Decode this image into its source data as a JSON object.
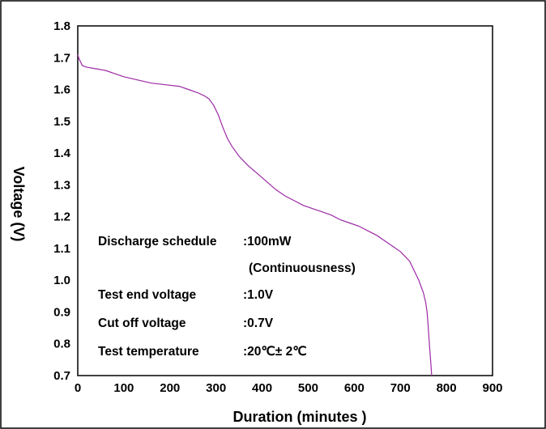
{
  "chart_data": {
    "type": "line",
    "xlabel": "Duration  (minutes )",
    "ylabel": "Voltage (V)",
    "xlim": [
      0,
      900
    ],
    "ylim": [
      0.7,
      1.8
    ],
    "x_ticks": [
      "0",
      "100",
      "200",
      "300",
      "400",
      "500",
      "600",
      "700",
      "800",
      "900"
    ],
    "y_ticks": [
      "0.7",
      "0.8",
      "0.9",
      "1.0",
      "1.1",
      "1.2",
      "1.3",
      "1.4",
      "1.5",
      "1.6",
      "1.7",
      "1.8"
    ],
    "grid": false,
    "line_color": "#9c2aa6",
    "series": [
      {
        "x": [
          0,
          2,
          5,
          10,
          20,
          40,
          60,
          80,
          100,
          130,
          160,
          190,
          220,
          240,
          260,
          275,
          285,
          295,
          305,
          315,
          325,
          335,
          350,
          370,
          390,
          410,
          430,
          450,
          470,
          490,
          510,
          530,
          550,
          570,
          590,
          610,
          630,
          650,
          670,
          690,
          700,
          710,
          720,
          730,
          740,
          745,
          750,
          755,
          758,
          760,
          762,
          764,
          766,
          768
        ],
        "y": [
          1.71,
          1.7,
          1.69,
          1.675,
          1.67,
          1.665,
          1.66,
          1.65,
          1.64,
          1.63,
          1.62,
          1.615,
          1.61,
          1.6,
          1.59,
          1.58,
          1.57,
          1.55,
          1.52,
          1.48,
          1.445,
          1.42,
          1.39,
          1.36,
          1.335,
          1.31,
          1.285,
          1.265,
          1.25,
          1.235,
          1.225,
          1.215,
          1.205,
          1.19,
          1.18,
          1.17,
          1.155,
          1.14,
          1.12,
          1.1,
          1.09,
          1.075,
          1.06,
          1.03,
          1.0,
          0.98,
          0.96,
          0.93,
          0.9,
          0.86,
          0.82,
          0.78,
          0.74,
          0.7
        ]
      }
    ]
  },
  "annotations": {
    "schedule_label": "Discharge schedule",
    "schedule_value": ":100mW",
    "schedule_value_2": "(Continuousness)",
    "end_voltage_label": "Test end voltage",
    "end_voltage_value": ":1.0V",
    "cutoff_label": "Cut off voltage",
    "cutoff_value": ":0.7V",
    "temperature_label": "Test temperature",
    "temperature_value": ":20℃± 2℃"
  }
}
